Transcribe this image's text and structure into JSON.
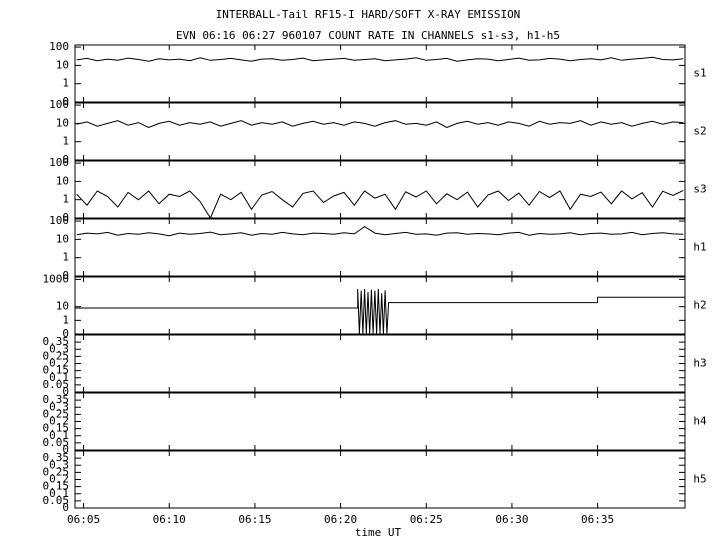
{
  "chart_data": [
    {
      "type": "line",
      "title": "INTERBALL-Tail RF15-I HARD/SOFT X-RAY EMISSION",
      "subtitle": "EVN 06:16 06:27 960107  COUNT RATE IN CHANNELS s1-s3, h1-h5",
      "label": "s1",
      "log": true,
      "ylim": [
        0.1,
        130
      ],
      "yticks": [
        100,
        10,
        1,
        {
          "value": 0.1,
          "label": "0"
        }
      ],
      "xlim": [
        4.5,
        40.1
      ],
      "x": [
        4.6,
        5.2,
        5.8,
        6.4,
        7.0,
        7.6,
        8.2,
        8.8,
        9.4,
        10.0,
        10.6,
        11.2,
        11.8,
        12.4,
        13.0,
        13.6,
        14.2,
        14.8,
        15.4,
        16.0,
        16.6,
        17.2,
        17.8,
        18.4,
        19.0,
        19.6,
        20.2,
        20.8,
        21.4,
        22.0,
        22.6,
        23.2,
        23.8,
        24.4,
        25.0,
        25.6,
        26.2,
        26.8,
        27.4,
        28.0,
        28.6,
        29.2,
        29.8,
        30.4,
        31.0,
        31.6,
        32.2,
        32.8,
        33.4,
        34.0,
        34.6,
        35.2,
        35.8,
        36.4,
        37.0,
        37.6,
        38.2,
        38.8,
        39.4,
        40.0
      ],
      "values": [
        20,
        24,
        18,
        22,
        19,
        25,
        21,
        17,
        23,
        20,
        22,
        18,
        26,
        19,
        21,
        24,
        20,
        17,
        22,
        23,
        19,
        21,
        25,
        18,
        20,
        22,
        24,
        19,
        21,
        23,
        18,
        20,
        22,
        26,
        19,
        21,
        24,
        17,
        20,
        23,
        22,
        18,
        21,
        25,
        19,
        20,
        24,
        22,
        18,
        21,
        23,
        20,
        26,
        19,
        22,
        24,
        28,
        21,
        20,
        23
      ]
    },
    {
      "type": "line",
      "label": "s2",
      "log": true,
      "ylim": [
        0.1,
        130
      ],
      "yticks": [
        100,
        10,
        1,
        {
          "value": 0.1,
          "label": "0"
        }
      ],
      "xlim": [
        4.5,
        40.1
      ],
      "x": [
        4.6,
        5.2,
        5.8,
        6.4,
        7.0,
        7.6,
        8.2,
        8.8,
        9.4,
        10.0,
        10.6,
        11.2,
        11.8,
        12.4,
        13.0,
        13.6,
        14.2,
        14.8,
        15.4,
        16.0,
        16.6,
        17.2,
        17.8,
        18.4,
        19.0,
        19.6,
        20.2,
        20.8,
        21.4,
        22.0,
        22.6,
        23.2,
        23.8,
        24.4,
        25.0,
        25.6,
        26.2,
        26.8,
        27.4,
        28.0,
        28.6,
        29.2,
        29.8,
        30.4,
        31.0,
        31.6,
        32.2,
        32.8,
        33.4,
        34.0,
        34.6,
        35.2,
        35.8,
        36.4,
        37.0,
        37.6,
        38.2,
        38.8,
        39.4,
        40.0
      ],
      "values": [
        9,
        12,
        7,
        10,
        14,
        8,
        11,
        6,
        10,
        13,
        8,
        11,
        9,
        12,
        7,
        10,
        14,
        8,
        11,
        9,
        12,
        7,
        10,
        13,
        9,
        11,
        8,
        12,
        10,
        7,
        11,
        14,
        9,
        10,
        8,
        12,
        6,
        10,
        13,
        9,
        11,
        8,
        12,
        10,
        7,
        13,
        9,
        11,
        10,
        14,
        8,
        12,
        9,
        11,
        7,
        10,
        13,
        9,
        12,
        11
      ]
    },
    {
      "type": "line",
      "label": "s3",
      "log": true,
      "ylim": [
        0.1,
        130
      ],
      "yticks": [
        100,
        10,
        1,
        {
          "value": 0.1,
          "label": "0"
        }
      ],
      "xlim": [
        4.5,
        40.1
      ],
      "x": [
        4.6,
        5.2,
        5.8,
        6.4,
        7.0,
        7.6,
        8.2,
        8.8,
        9.4,
        10.0,
        10.6,
        11.2,
        11.8,
        12.4,
        13.0,
        13.6,
        14.2,
        14.8,
        15.4,
        16.0,
        16.6,
        17.2,
        17.8,
        18.4,
        19.0,
        19.6,
        20.2,
        20.8,
        21.4,
        22.0,
        22.6,
        23.2,
        23.8,
        24.4,
        25.0,
        25.6,
        26.2,
        26.8,
        27.4,
        28.0,
        28.6,
        29.2,
        29.8,
        30.4,
        31.0,
        31.6,
        32.2,
        32.8,
        33.4,
        34.0,
        34.6,
        35.2,
        35.8,
        36.4,
        37.0,
        37.6,
        38.2,
        38.8,
        39.4,
        40.0
      ],
      "values": [
        2,
        0.5,
        3,
        1.5,
        0.4,
        2.5,
        1,
        3,
        0.6,
        2,
        1.5,
        3,
        0.8,
        0.1,
        2,
        1,
        2.5,
        0.3,
        1.8,
        2.8,
        1,
        0.4,
        2.2,
        3,
        0.7,
        1.6,
        2.5,
        0.5,
        3,
        1.2,
        2,
        0.3,
        2.7,
        1.4,
        3,
        0.6,
        2.1,
        1,
        2.6,
        0.4,
        1.8,
        3,
        0.9,
        2.3,
        0.5,
        2.8,
        1.3,
        3,
        0.3,
        2,
        1.5,
        2.6,
        0.6,
        3,
        1.1,
        2.4,
        0.4,
        2.9,
        1.7,
        3.2
      ]
    },
    {
      "type": "line",
      "label": "h1",
      "log": true,
      "ylim": [
        0.1,
        130
      ],
      "yticks": [
        100,
        10,
        1,
        {
          "value": 0.1,
          "label": "0"
        }
      ],
      "xlim": [
        4.5,
        40.1
      ],
      "x": [
        4.6,
        5.2,
        5.8,
        6.4,
        7.0,
        7.6,
        8.2,
        8.8,
        9.4,
        10.0,
        10.6,
        11.2,
        11.8,
        12.4,
        13.0,
        13.6,
        14.2,
        14.8,
        15.4,
        16.0,
        16.6,
        17.2,
        17.8,
        18.4,
        19.0,
        19.6,
        20.2,
        20.8,
        21.4,
        22.0,
        22.6,
        23.2,
        23.8,
        24.4,
        25.0,
        25.6,
        26.2,
        26.8,
        27.4,
        28.0,
        28.6,
        29.2,
        29.8,
        30.4,
        31.0,
        31.6,
        32.2,
        32.8,
        33.4,
        34.0,
        34.6,
        35.2,
        35.8,
        36.4,
        37.0,
        37.6,
        38.2,
        38.8,
        39.4,
        40.0
      ],
      "values": [
        18,
        22,
        20,
        24,
        17,
        21,
        19,
        23,
        20,
        16,
        22,
        19,
        21,
        25,
        18,
        20,
        23,
        17,
        21,
        19,
        24,
        20,
        18,
        22,
        21,
        19,
        23,
        20,
        50,
        22,
        18,
        21,
        24,
        19,
        20,
        17,
        22,
        23,
        19,
        21,
        20,
        18,
        22,
        24,
        17,
        21,
        19,
        20,
        23,
        18,
        21,
        22,
        19,
        20,
        24,
        18,
        21,
        23,
        20,
        19
      ]
    },
    {
      "type": "line",
      "label": "h2",
      "log": true,
      "ylim": [
        0.1,
        1500
      ],
      "yticks": [
        1000,
        10,
        1,
        {
          "value": 0.1,
          "label": "0"
        }
      ],
      "xlim": [
        4.5,
        40.1
      ],
      "x": [
        4.5,
        21.0,
        21.0,
        21.1,
        21.2,
        21.3,
        21.4,
        21.5,
        21.6,
        21.7,
        21.8,
        21.9,
        22.0,
        22.1,
        22.2,
        22.3,
        22.4,
        22.5,
        22.6,
        22.7,
        22.8,
        35.0,
        35.0,
        40.1
      ],
      "values": [
        8,
        8,
        200,
        0.1,
        150,
        0.1,
        200,
        0.1,
        120,
        0.1,
        180,
        0.1,
        150,
        0.1,
        200,
        0.1,
        100,
        0.1,
        160,
        0.1,
        20,
        20,
        50,
        50
      ]
    },
    {
      "type": "line",
      "label": "h3",
      "log": false,
      "ylim": [
        0,
        0.4
      ],
      "yticks": [
        0.35,
        0.3,
        0.25,
        0.2,
        0.15,
        0.1,
        0.05,
        0
      ],
      "xlim": [
        4.5,
        40.1
      ]
    },
    {
      "type": "line",
      "label": "h4",
      "log": false,
      "ylim": [
        0,
        0.4
      ],
      "yticks": [
        0.35,
        0.3,
        0.25,
        0.2,
        0.15,
        0.1,
        0.05,
        0
      ],
      "xlim": [
        4.5,
        40.1
      ]
    },
    {
      "type": "line",
      "label": "h5",
      "log": false,
      "ylim": [
        0,
        0.4
      ],
      "yticks": [
        0.35,
        0.3,
        0.25,
        0.2,
        0.15,
        0.1,
        0.05,
        0
      ],
      "xlim": [
        4.5,
        40.1
      ],
      "xlabel": "time UT",
      "xticks": [
        {
          "value": 5,
          "label": "06:05"
        },
        {
          "value": 10,
          "label": "06:10"
        },
        {
          "value": 15,
          "label": "06:15"
        },
        {
          "value": 20,
          "label": "06:20"
        },
        {
          "value": 25,
          "label": "06:25"
        },
        {
          "value": 30,
          "label": "06:30"
        },
        {
          "value": 35,
          "label": "06:35"
        }
      ]
    }
  ]
}
